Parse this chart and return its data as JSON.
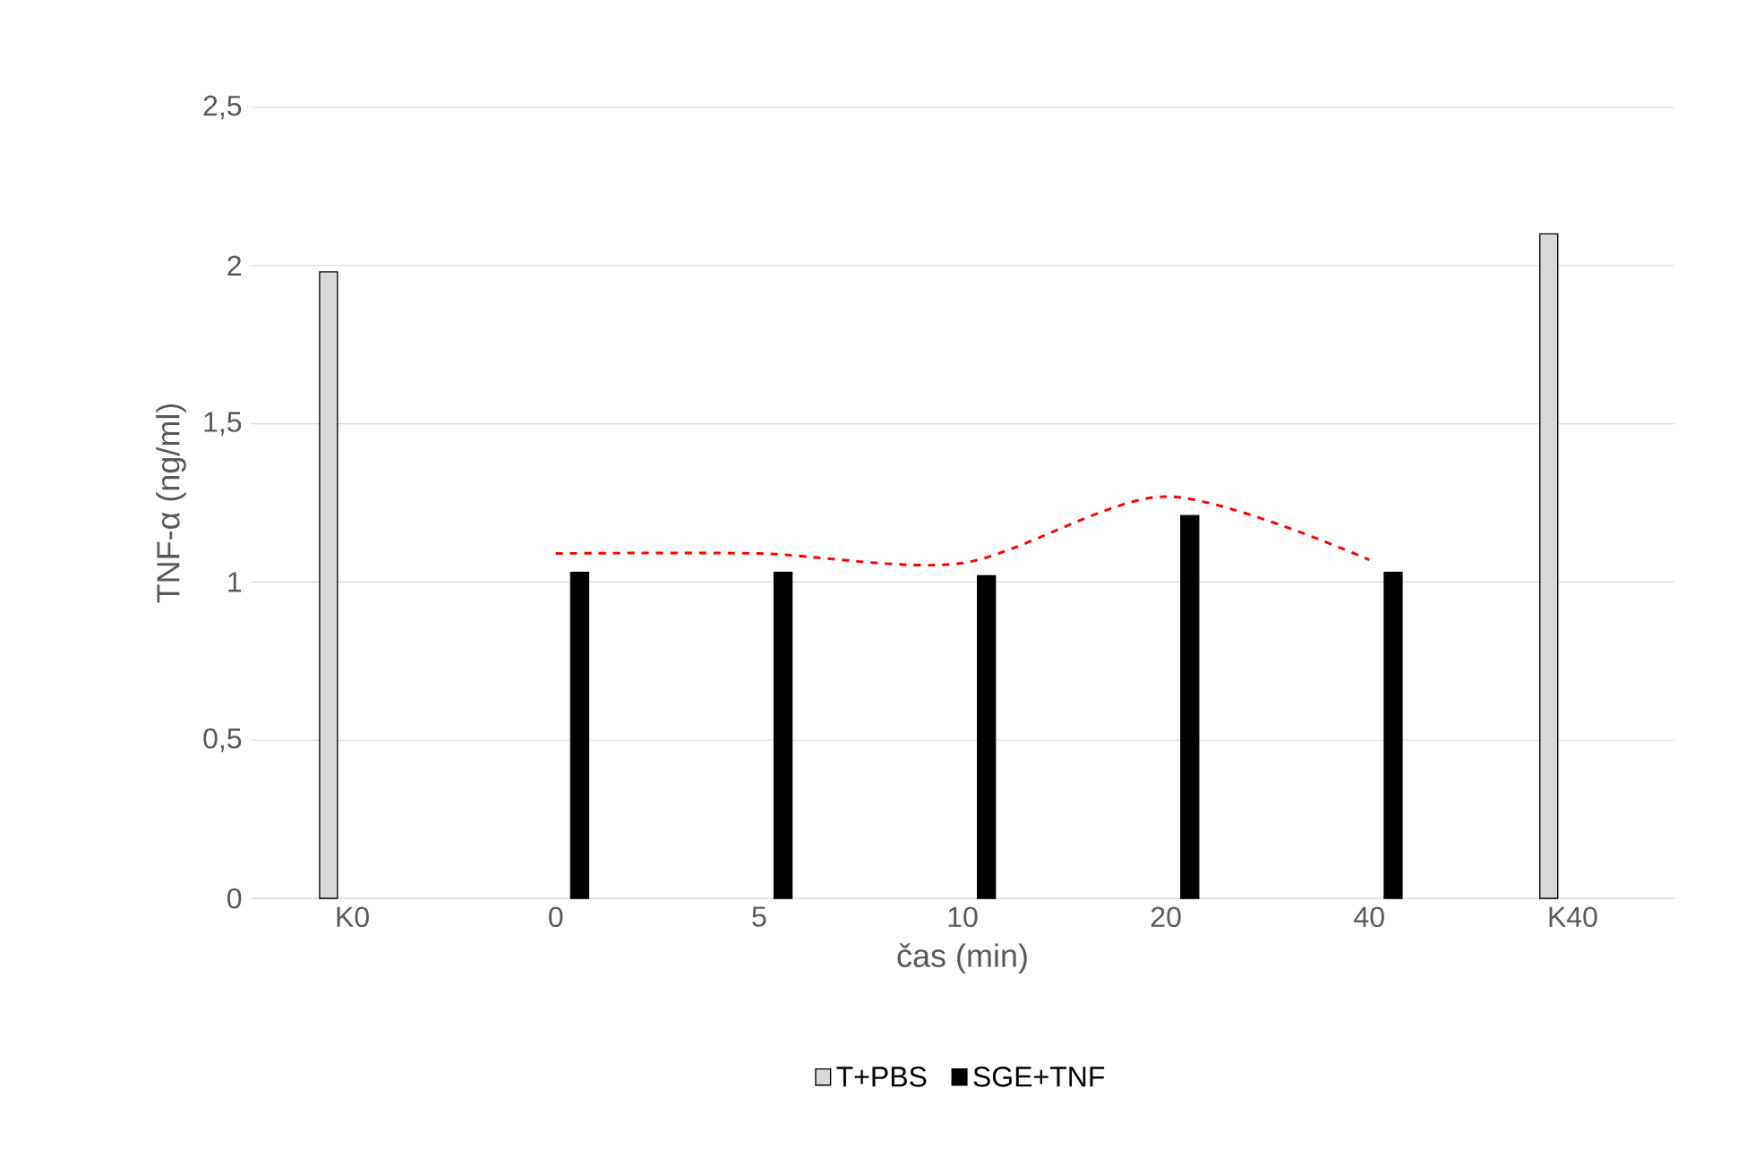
{
  "chart_data": {
    "type": "bar",
    "xlabel": "čas (min)",
    "ylabel": "TNF-α (ng/ml)",
    "categories": [
      "K0",
      "0",
      "5",
      "10",
      "20",
      "40",
      "K40"
    ],
    "series": [
      {
        "name": "T+PBS",
        "color": "#d9d9d9",
        "values": [
          1.98,
          null,
          null,
          null,
          null,
          null,
          2.1
        ]
      },
      {
        "name": "SGE+TNF",
        "color": "#000000",
        "values": [
          null,
          1.03,
          1.03,
          1.02,
          1.21,
          1.03,
          null
        ]
      },
      {
        "type": "line",
        "color": "#ff0000",
        "line_style": "dashed",
        "values": [
          null,
          1.09,
          1.09,
          1.06,
          1.27,
          1.07,
          null
        ]
      }
    ],
    "ylim": [
      0,
      2.5
    ],
    "yticks": [
      0,
      {
        "value": 0.5,
        "label": "0,5"
      },
      1,
      {
        "value": 1.5,
        "label": "1,5"
      },
      2,
      {
        "value": 2.5,
        "label": "2,5"
      }
    ],
    "grid": "y",
    "legend": "bottom"
  }
}
